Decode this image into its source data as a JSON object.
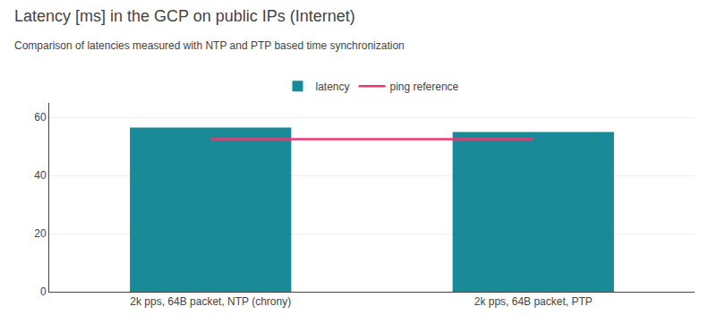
{
  "chart_data": {
    "type": "bar",
    "title": "Latency [ms] in the GCP on public IPs (Internet)",
    "subtitle": "Comparison of latencies measured with NTP and PTP based time synchronization",
    "categories": [
      "2k pps, 64B packet, NTP (chrony)",
      "2k pps, 64B packet, PTP"
    ],
    "series": [
      {
        "name": "latency",
        "type": "bar",
        "color": "#1a8a99",
        "values": [
          56.5,
          55.0
        ]
      },
      {
        "name": "ping reference",
        "type": "line",
        "color": "#f0366e",
        "values": [
          52.5,
          52.5
        ]
      }
    ],
    "ylim": [
      0,
      65
    ],
    "yticks": [
      0,
      20,
      40,
      60
    ],
    "grid": true,
    "legend": "top"
  }
}
